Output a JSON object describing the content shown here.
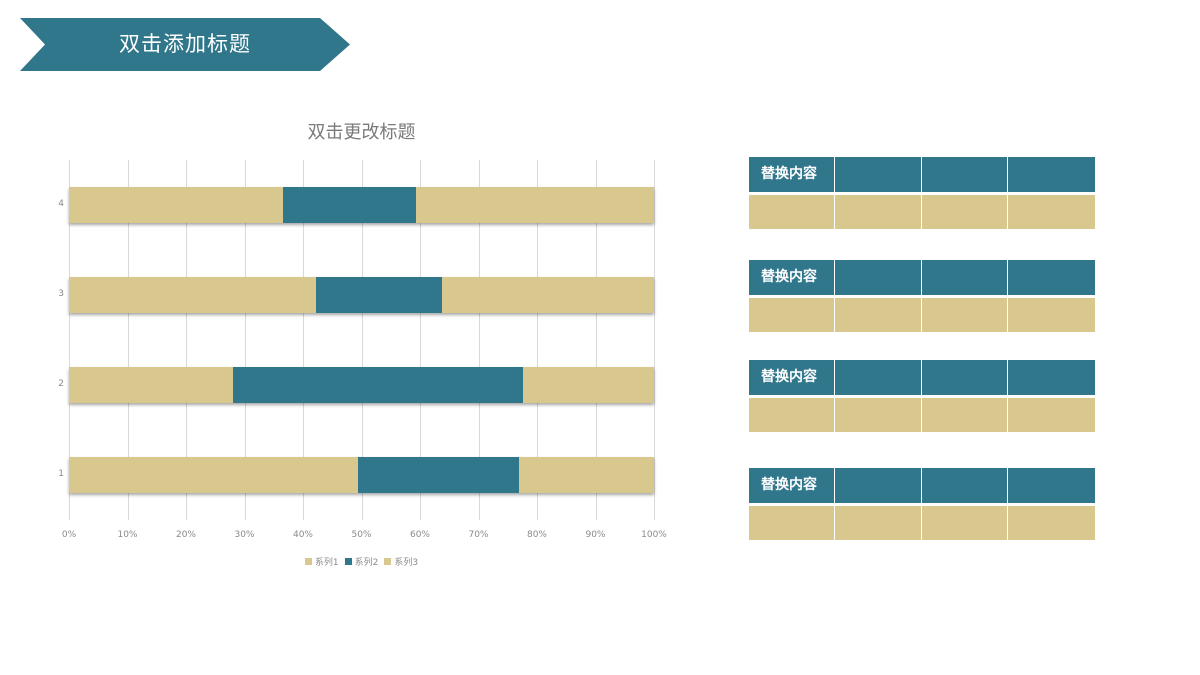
{
  "header": {
    "title": "双击添加标题",
    "banner_color": "#31778c"
  },
  "colors": {
    "series1": "#d9c88e",
    "series2": "#31778c",
    "series3": "#d9c88e"
  },
  "chart_data": {
    "type": "bar",
    "orientation": "horizontal",
    "stacked": "percent",
    "title": "双击更改标题",
    "categories": [
      "1",
      "2",
      "3",
      "4"
    ],
    "series": [
      {
        "name": "系列1",
        "values": [
          49.4,
          28.0,
          42.2,
          36.6
        ],
        "color": "#d9c88e"
      },
      {
        "name": "系列2",
        "values": [
          27.5,
          49.6,
          21.6,
          22.7
        ],
        "color": "#31778c"
      },
      {
        "name": "系列3",
        "values": [
          23.1,
          22.4,
          36.2,
          40.7
        ],
        "color": "#d9c88e"
      }
    ],
    "xlabel": "",
    "ylabel": "",
    "xlim": [
      0,
      100
    ],
    "x_ticks": [
      "0%",
      "10%",
      "20%",
      "30%",
      "40%",
      "50%",
      "60%",
      "70%",
      "80%",
      "90%",
      "100%"
    ],
    "grid": true,
    "legend_position": "bottom"
  },
  "legend": {
    "items": [
      {
        "label": "系列1",
        "color": "#d9c88e"
      },
      {
        "label": "系列2",
        "color": "#31778c"
      },
      {
        "label": "系列3",
        "color": "#d9c88e"
      }
    ]
  },
  "tables": [
    {
      "header": [
        "替换内容",
        "",
        "",
        ""
      ],
      "row": [
        "",
        "",
        "",
        ""
      ]
    },
    {
      "header": [
        "替换内容",
        "",
        "",
        ""
      ],
      "row": [
        "",
        "",
        "",
        ""
      ]
    },
    {
      "header": [
        "替换内容",
        "",
        "",
        ""
      ],
      "row": [
        "",
        "",
        "",
        ""
      ]
    },
    {
      "header": [
        "替换内容",
        "",
        "",
        ""
      ],
      "row": [
        "",
        "",
        "",
        ""
      ]
    }
  ]
}
